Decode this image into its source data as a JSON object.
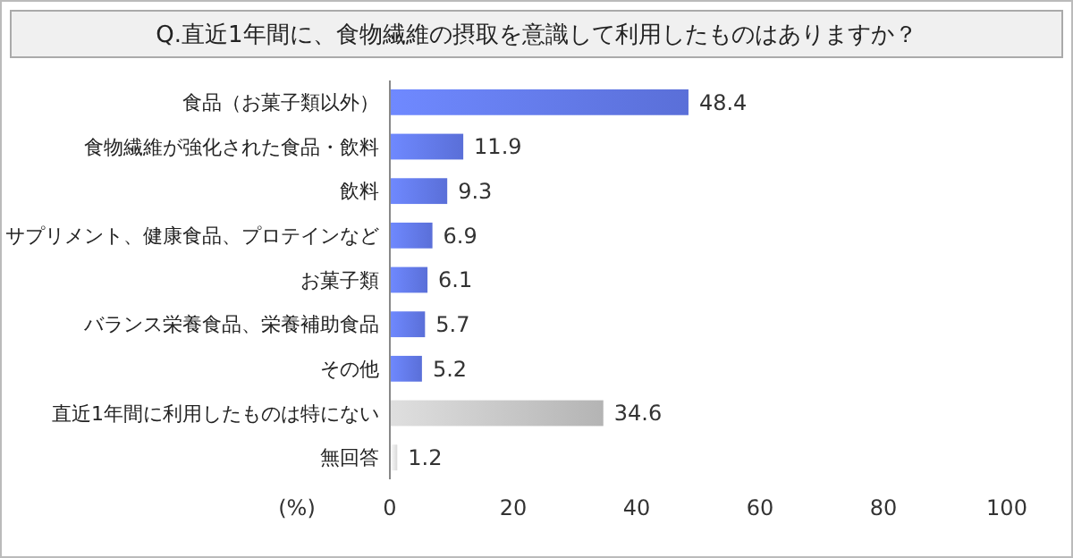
{
  "chart_data": {
    "type": "bar",
    "orientation": "horizontal",
    "title": "Q.直近1年間に、食物繊維の摂取を意識して利用したものはありますか？",
    "categories": [
      "食品（お菓子類以外）",
      "食物繊維が強化された食品・飲料",
      "飲料",
      "サプリメント、健康食品、プロテインなど",
      "お菓子類",
      "バランス栄養食品、栄養補助食品",
      "その他",
      "直近1年間に利用したものは特にない",
      "無回答"
    ],
    "values": [
      48.4,
      11.9,
      9.3,
      6.9,
      6.1,
      5.7,
      5.2,
      34.6,
      1.2
    ],
    "colors": [
      "#5a6fd8",
      "#5a6fd8",
      "#5a6fd8",
      "#5a6fd8",
      "#5a6fd8",
      "#5a6fd8",
      "#5a6fd8",
      "#b4b4b4",
      "#d9d9d9"
    ],
    "xlabel": "(%)",
    "xlim": [
      0,
      100
    ],
    "xticks": [
      0,
      20,
      40,
      60,
      80,
      100
    ],
    "data_labels": true
  }
}
